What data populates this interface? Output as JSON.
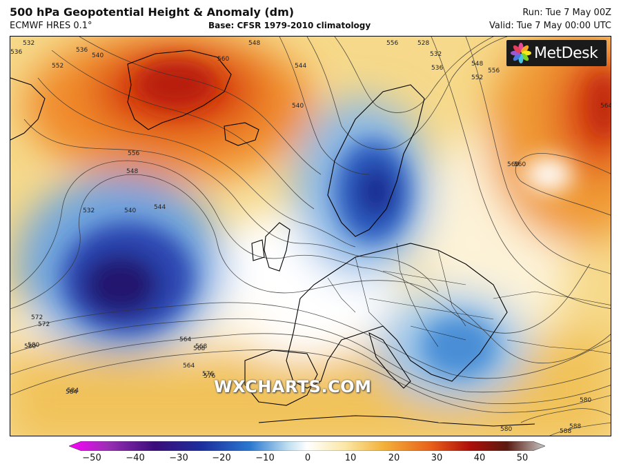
{
  "header": {
    "title": "500 hPa Geopotential Height & Anomaly (dm)",
    "model": "ECMWF HRES 0.1°",
    "base": "Base: CFSR 1979-2010 climatology",
    "run": "Run: Tue 7 May 00Z",
    "valid": "Valid: Tue 7 May 00:00 UTC"
  },
  "logo": {
    "text": "MetDesk",
    "icon": "metdesk-flower-logo"
  },
  "watermark": "WXCHARTS.COM",
  "contour_labels": [
    "532",
    "536",
    "540",
    "544",
    "548",
    "552",
    "556",
    "560",
    "564",
    "568",
    "572",
    "576",
    "580",
    "584",
    "588",
    "528",
    "532",
    "536",
    "548",
    "552",
    "556",
    "560",
    "564",
    "544",
    "540",
    "556",
    "548",
    "540",
    "536",
    "532",
    "572",
    "580",
    "564",
    "568",
    "576",
    "584",
    "560",
    "588",
    "580",
    "580"
  ],
  "colorbar": {
    "ticks": [
      "−50",
      "−40",
      "−30",
      "−20",
      "−10",
      "0",
      "10",
      "20",
      "30",
      "40",
      "50"
    ],
    "colors": [
      "#ff00ff",
      "#9b2fb5",
      "#3a0d7a",
      "#1c2f9e",
      "#2a78d0",
      "#bfdff0",
      "#ffffff",
      "#fbe7a6",
      "#f3b23a",
      "#e8601a",
      "#b0100a",
      "#5a1a10",
      "#c8c8c8"
    ]
  }
}
